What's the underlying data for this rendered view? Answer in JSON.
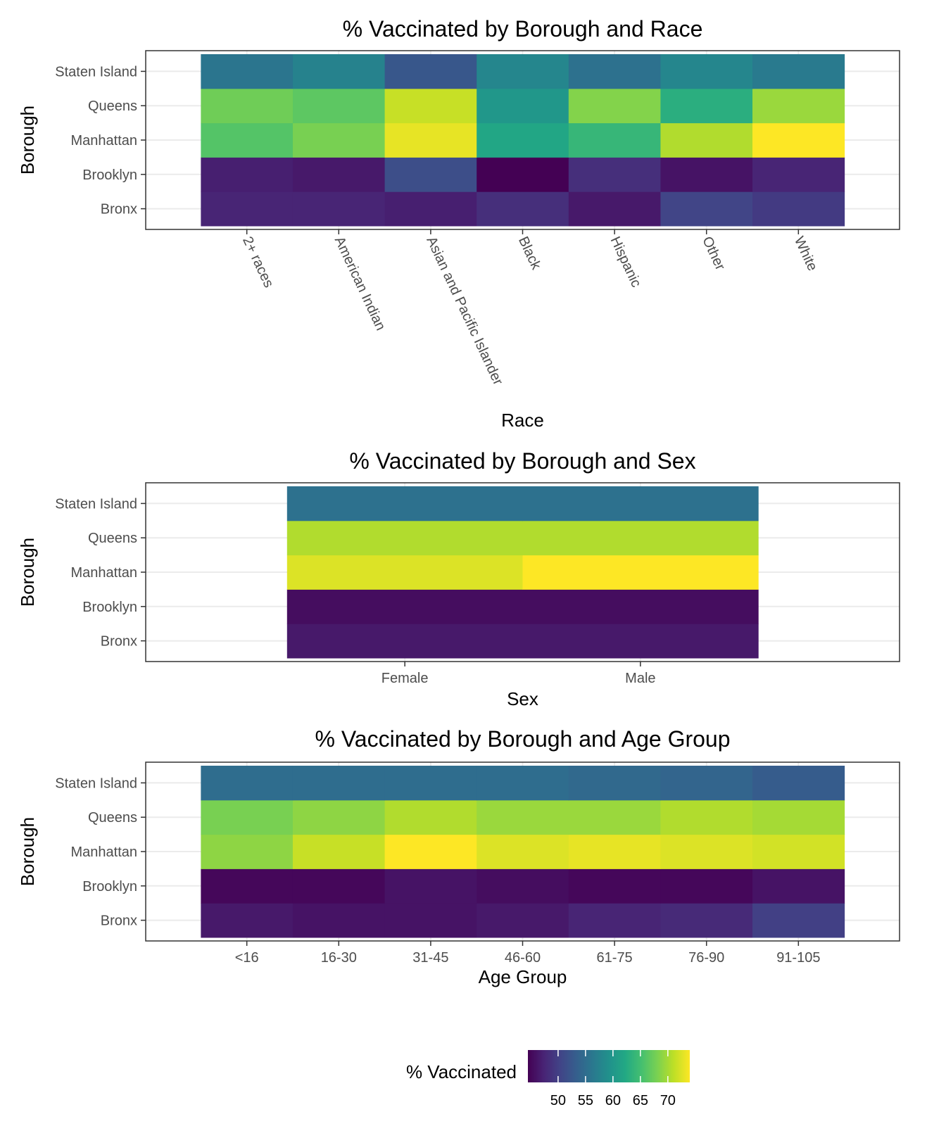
{
  "chart_data": [
    {
      "type": "heatmap",
      "title": "% Vaccinated by Borough and Race",
      "xlabel": "Race",
      "ylabel": "Borough",
      "x": [
        "2+ races",
        "American Indian",
        "Asian and Pacific Islander",
        "Black",
        "Hispanic",
        "Other",
        "White"
      ],
      "y": [
        "Bronx",
        "Brooklyn",
        "Manhattan",
        "Queens",
        "Staten Island"
      ],
      "values": [
        [
          47.5,
          47.5,
          47.0,
          48.5,
          46.5,
          50.5,
          49.5
        ],
        [
          47.0,
          46.5,
          51.5,
          44.5,
          48.5,
          46.0,
          47.5
        ],
        [
          66.0,
          68.0,
          73.0,
          62.0,
          64.0,
          70.5,
          74.0
        ],
        [
          67.5,
          66.5,
          71.5,
          60.0,
          68.5,
          63.0,
          69.5
        ],
        [
          56.0,
          57.5,
          52.5,
          58.0,
          55.5,
          58.0,
          56.5
        ]
      ]
    },
    {
      "type": "heatmap",
      "title": "% Vaccinated by Borough and Sex",
      "xlabel": "Sex",
      "ylabel": "Borough",
      "x": [
        "Female",
        "Male"
      ],
      "y": [
        "Bronx",
        "Brooklyn",
        "Manhattan",
        "Queens",
        "Staten Island"
      ],
      "values": [
        [
          46.5,
          46.5
        ],
        [
          45.5,
          45.5
        ],
        [
          72.5,
          74.0
        ],
        [
          70.5,
          70.5
        ],
        [
          55.5,
          55.5
        ]
      ]
    },
    {
      "type": "heatmap",
      "title": "% Vaccinated by Borough and Age Group",
      "xlabel": "Age Group",
      "ylabel": "Borough",
      "x": [
        "<16",
        "16-30",
        "31-45",
        "46-60",
        "61-75",
        "76-90",
        "91-105"
      ],
      "y": [
        "Bronx",
        "Brooklyn",
        "Manhattan",
        "Queens",
        "Staten Island"
      ],
      "values": [
        [
          46.5,
          46.0,
          46.0,
          46.5,
          47.5,
          48.0,
          50.0
        ],
        [
          45.0,
          45.0,
          46.0,
          45.5,
          45.0,
          45.0,
          46.0
        ],
        [
          69.0,
          71.5,
          74.0,
          72.5,
          73.0,
          72.5,
          72.0
        ],
        [
          68.0,
          69.0,
          70.5,
          69.5,
          69.5,
          70.5,
          70.0
        ],
        [
          55.0,
          55.0,
          55.0,
          55.0,
          54.5,
          54.0,
          53.0
        ]
      ]
    }
  ],
  "legend": {
    "title": "% Vaccinated",
    "ticks": [
      50,
      55,
      60,
      65,
      70
    ],
    "min": 44.5,
    "max": 74.0,
    "position": "bottom",
    "palette": "viridis"
  },
  "colors": {
    "panel_border": "#333333",
    "grid": "#ebebeb"
  }
}
